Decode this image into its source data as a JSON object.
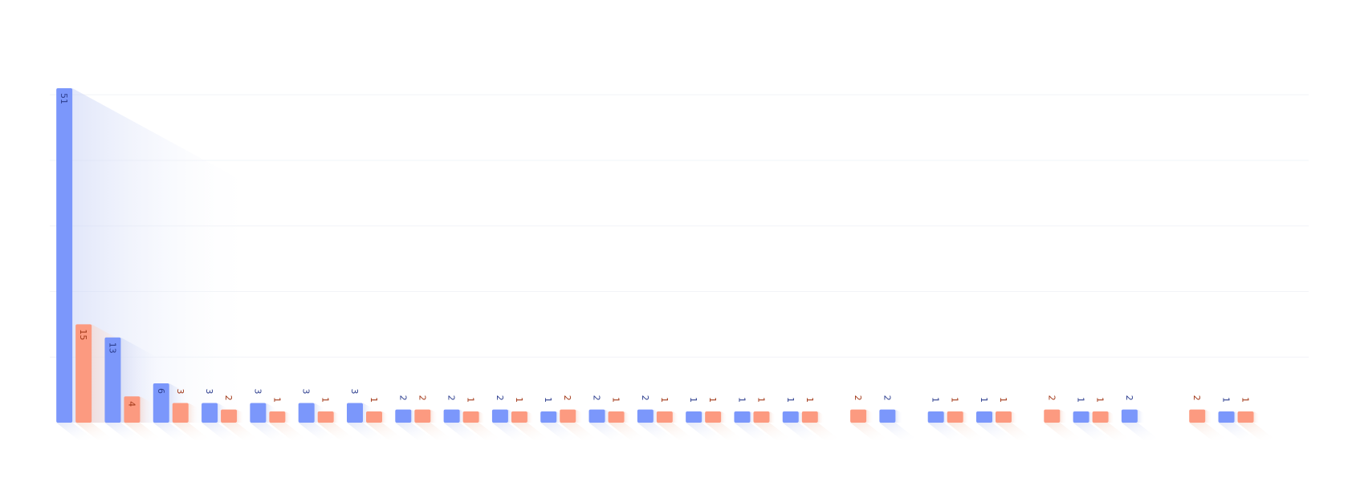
{
  "chart_data": {
    "type": "bar",
    "title": "",
    "xlabel": "",
    "ylabel": "",
    "ylim": [
      0,
      55
    ],
    "grid": true,
    "legend": "none",
    "categories": [
      "",
      "",
      "",
      "",
      "",
      "",
      "",
      "",
      "",
      "",
      "",
      "",
      "",
      "",
      "",
      "",
      "",
      "",
      "",
      "",
      "",
      "",
      "",
      "",
      "",
      ""
    ],
    "series": [
      {
        "color": "#7b97fb",
        "label_color": "#2e3f8f",
        "values": [
          51,
          13,
          6,
          3,
          3,
          3,
          3,
          2,
          2,
          2,
          1,
          2,
          2,
          1,
          1,
          1,
          null,
          2,
          1,
          1,
          null,
          1,
          2,
          null,
          1,
          null
        ]
      },
      {
        "color": "#fc9a80",
        "label_color": "#a33a1a",
        "values": [
          15,
          4,
          3,
          2,
          1,
          1,
          1,
          2,
          1,
          1,
          2,
          1,
          1,
          1,
          1,
          1,
          2,
          null,
          1,
          1,
          2,
          1,
          null,
          2,
          1,
          null
        ]
      }
    ]
  }
}
